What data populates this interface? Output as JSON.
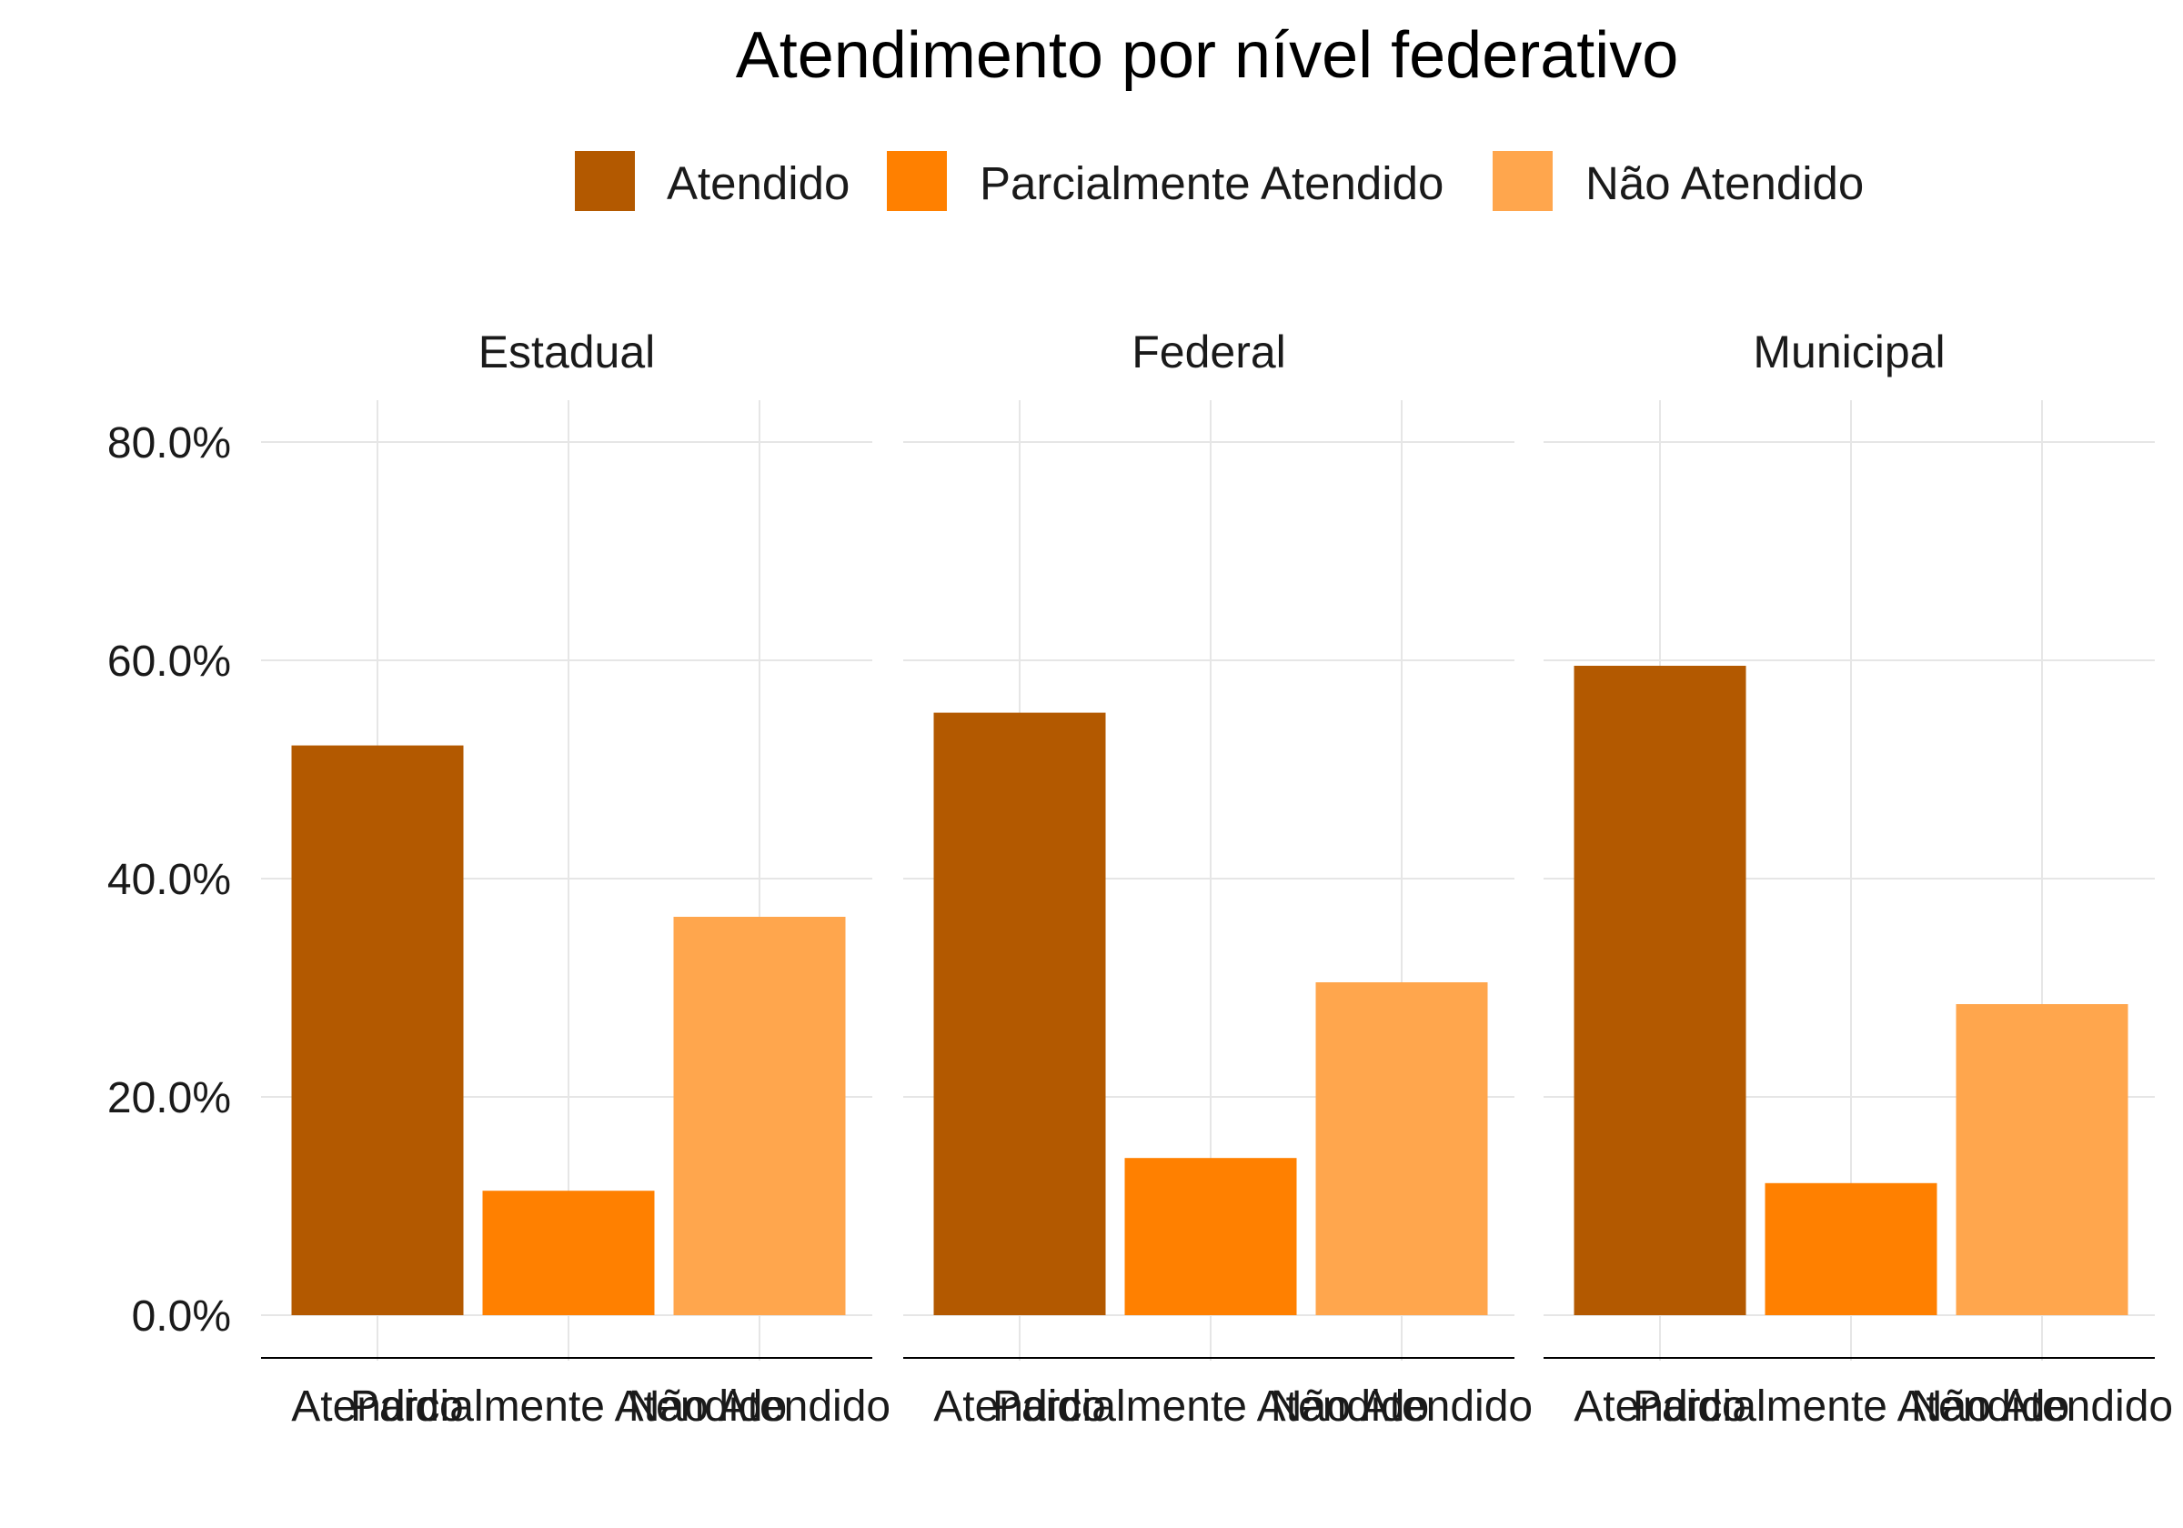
{
  "chart_data": {
    "type": "bar",
    "title": "Atendimento por nível federativo",
    "xlabel": "",
    "ylabel": "",
    "ylim": [
      0,
      0.84
    ],
    "y_ticks": [
      0,
      0.2,
      0.4,
      0.6,
      0.8
    ],
    "y_tick_labels": [
      "0.0%",
      "20.0%",
      "40.0%",
      "60.0%",
      "80.0%"
    ],
    "grid": true,
    "legend_position": "top",
    "categories": [
      "Atendido",
      "Parcialmente Atendido",
      "Não Atendido"
    ],
    "colors": [
      "#b35900",
      "#ff8000",
      "#ffa64d"
    ],
    "legend": [
      "Atendido",
      "Parcialmente Atendido",
      "Não Atendido"
    ],
    "panels": [
      {
        "name": "Estadual",
        "values": [
          0.522,
          0.114,
          0.365
        ]
      },
      {
        "name": "Federal",
        "values": [
          0.552,
          0.144,
          0.305
        ]
      },
      {
        "name": "Municipal",
        "values": [
          0.595,
          0.121,
          0.285
        ]
      }
    ]
  }
}
